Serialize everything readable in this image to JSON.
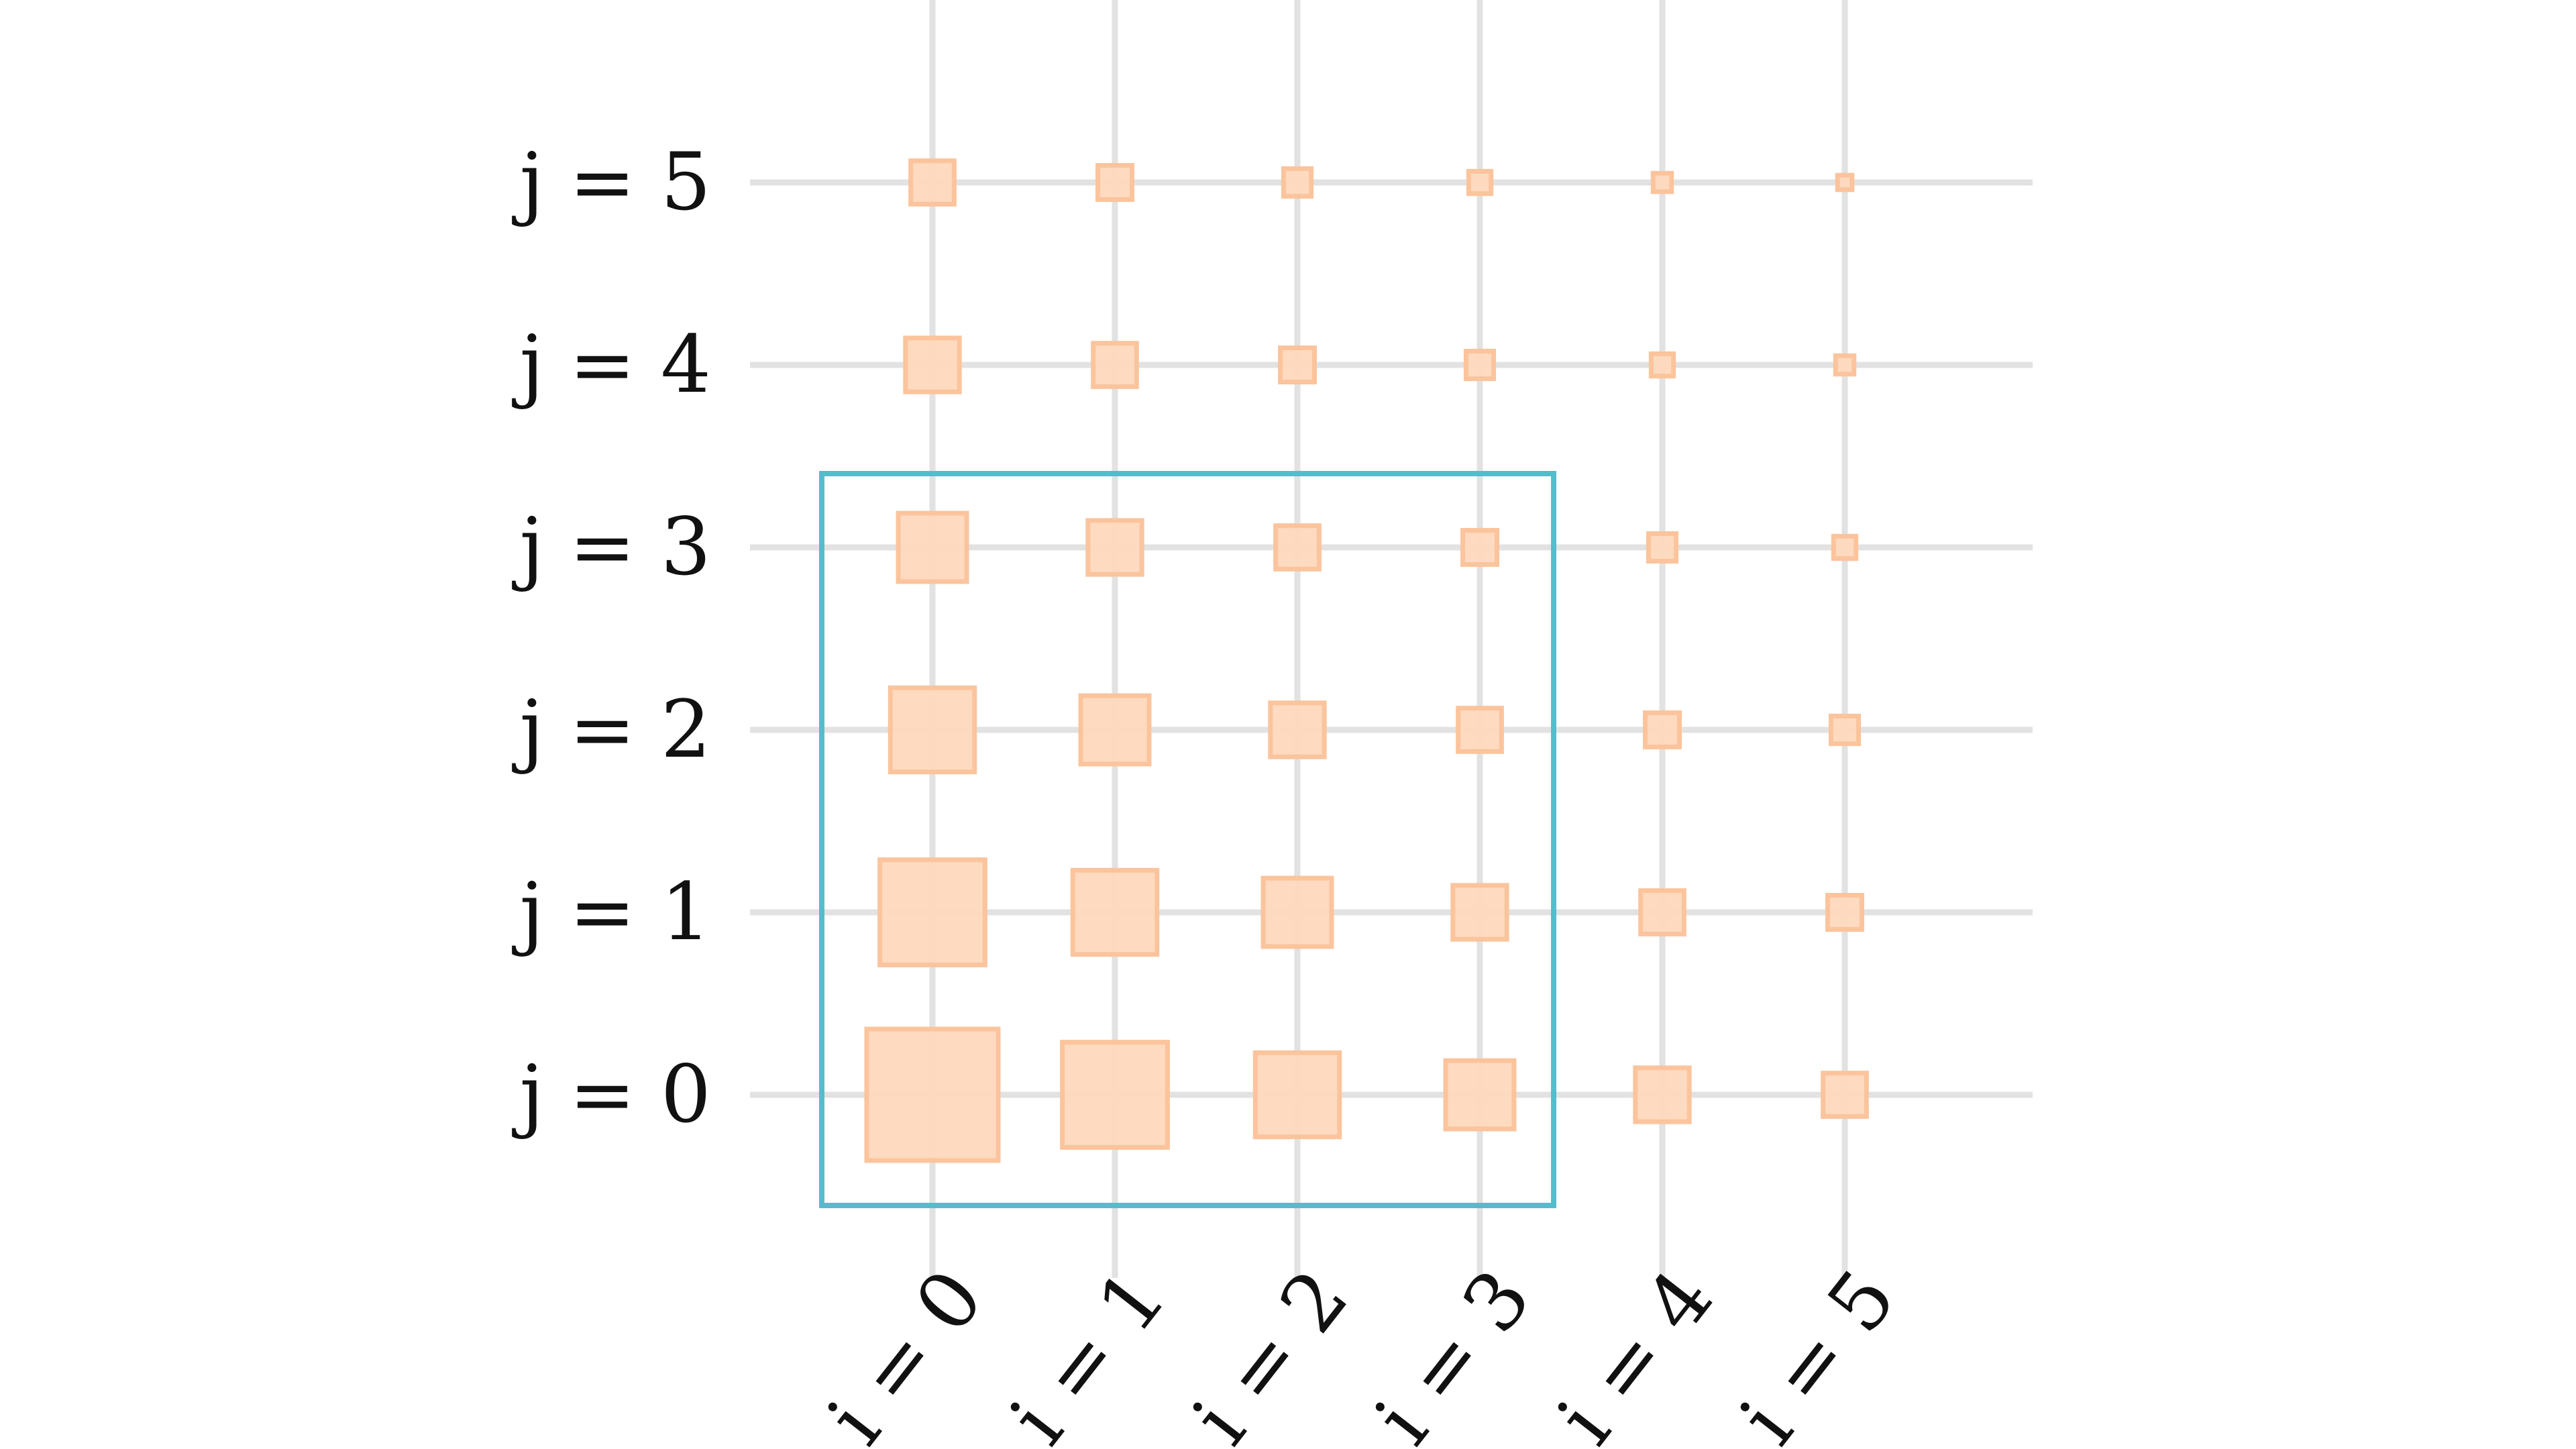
{
  "colors": {
    "grid": "#e2e2e2",
    "square_fill": "#fdd8bd",
    "square_stroke": "#fbc49c",
    "highlight": "#55bccc",
    "text": "#111111"
  },
  "x_axis": {
    "variable": "i",
    "labels": [
      "i = 0",
      "i = 1",
      "i = 2",
      "i = 3",
      "i = 4",
      "i = 5"
    ],
    "values": [
      0,
      1,
      2,
      3,
      4,
      5
    ]
  },
  "y_axis": {
    "variable": "j",
    "labels": [
      "j = 0",
      "j = 1",
      "j = 2",
      "j = 3",
      "j = 4",
      "j = 5"
    ],
    "values": [
      0,
      1,
      2,
      3,
      4,
      5
    ]
  },
  "cells": [
    {
      "i": 0,
      "j": 0,
      "size": 1.0
    },
    {
      "i": 1,
      "j": 0,
      "size": 0.8
    },
    {
      "i": 2,
      "j": 0,
      "size": 0.64
    },
    {
      "i": 3,
      "j": 0,
      "size": 0.52
    },
    {
      "i": 4,
      "j": 0,
      "size": 0.41
    },
    {
      "i": 5,
      "j": 0,
      "size": 0.33
    },
    {
      "i": 0,
      "j": 1,
      "size": 0.8
    },
    {
      "i": 1,
      "j": 1,
      "size": 0.64
    },
    {
      "i": 2,
      "j": 1,
      "size": 0.52
    },
    {
      "i": 3,
      "j": 1,
      "size": 0.41
    },
    {
      "i": 4,
      "j": 1,
      "size": 0.33
    },
    {
      "i": 5,
      "j": 1,
      "size": 0.26
    },
    {
      "i": 0,
      "j": 2,
      "size": 0.64
    },
    {
      "i": 1,
      "j": 2,
      "size": 0.52
    },
    {
      "i": 2,
      "j": 2,
      "size": 0.41
    },
    {
      "i": 3,
      "j": 2,
      "size": 0.33
    },
    {
      "i": 4,
      "j": 2,
      "size": 0.26
    },
    {
      "i": 5,
      "j": 2,
      "size": 0.21
    },
    {
      "i": 0,
      "j": 3,
      "size": 0.52
    },
    {
      "i": 1,
      "j": 3,
      "size": 0.41
    },
    {
      "i": 2,
      "j": 3,
      "size": 0.33
    },
    {
      "i": 3,
      "j": 3,
      "size": 0.26
    },
    {
      "i": 4,
      "j": 3,
      "size": 0.21
    },
    {
      "i": 5,
      "j": 3,
      "size": 0.17
    },
    {
      "i": 0,
      "j": 4,
      "size": 0.41
    },
    {
      "i": 1,
      "j": 4,
      "size": 0.33
    },
    {
      "i": 2,
      "j": 4,
      "size": 0.26
    },
    {
      "i": 3,
      "j": 4,
      "size": 0.21
    },
    {
      "i": 4,
      "j": 4,
      "size": 0.17
    },
    {
      "i": 5,
      "j": 4,
      "size": 0.14
    },
    {
      "i": 0,
      "j": 5,
      "size": 0.33
    },
    {
      "i": 1,
      "j": 5,
      "size": 0.26
    },
    {
      "i": 2,
      "j": 5,
      "size": 0.21
    },
    {
      "i": 3,
      "j": 5,
      "size": 0.17
    },
    {
      "i": 4,
      "j": 5,
      "size": 0.14
    },
    {
      "i": 5,
      "j": 5,
      "size": 0.11
    }
  ],
  "highlight_region": {
    "i_min": 0,
    "i_max": 3,
    "j_min": 0,
    "j_max": 3
  }
}
